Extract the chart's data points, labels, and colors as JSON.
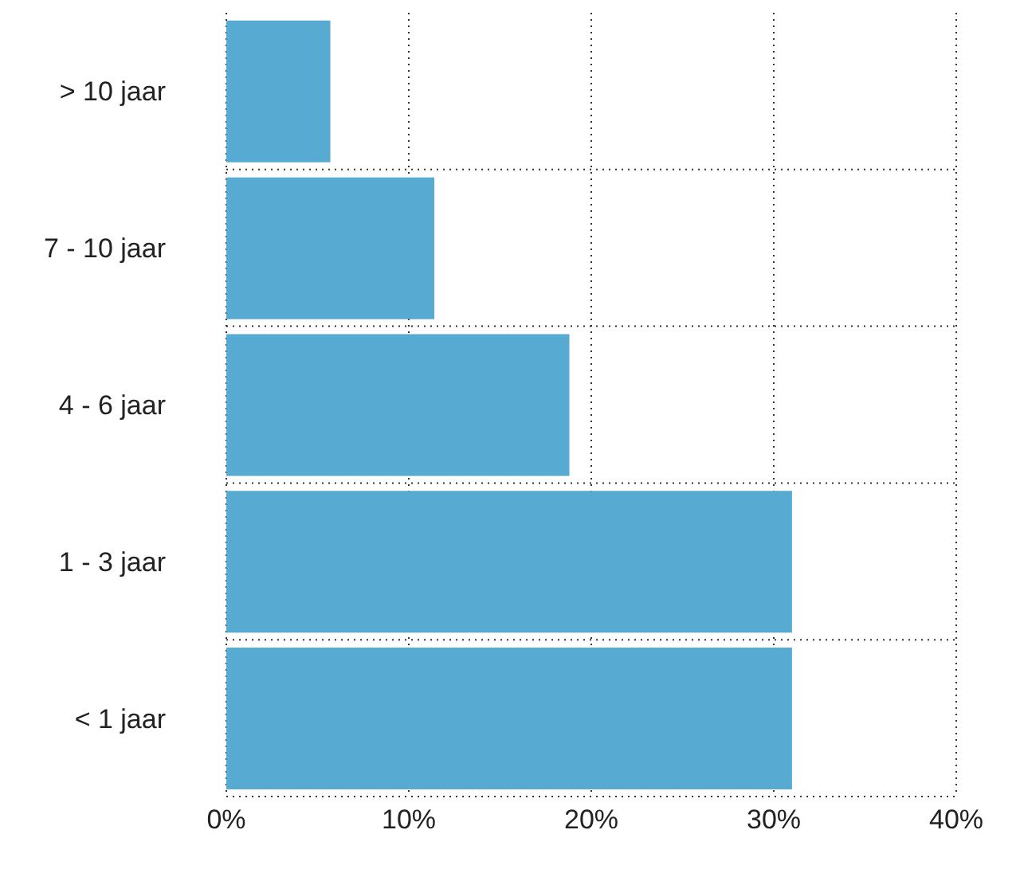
{
  "chart_data": {
    "type": "bar",
    "orientation": "horizontal",
    "categories": [
      "> 10 jaar",
      "7 - 10 jaar",
      "4 - 6 jaar",
      "1 - 3 jaar",
      "< 1 jaar"
    ],
    "values": [
      5.7,
      11.4,
      18.8,
      31,
      31
    ],
    "color": "#57abd2",
    "xlim": [
      0,
      40
    ],
    "xticks": [
      {
        "value": 0,
        "label": "0%"
      },
      {
        "value": 10,
        "label": "10%"
      },
      {
        "value": 20,
        "label": "20%"
      },
      {
        "value": 30,
        "label": "30%"
      },
      {
        "value": 40,
        "label": "40%"
      }
    ],
    "grid": true
  }
}
